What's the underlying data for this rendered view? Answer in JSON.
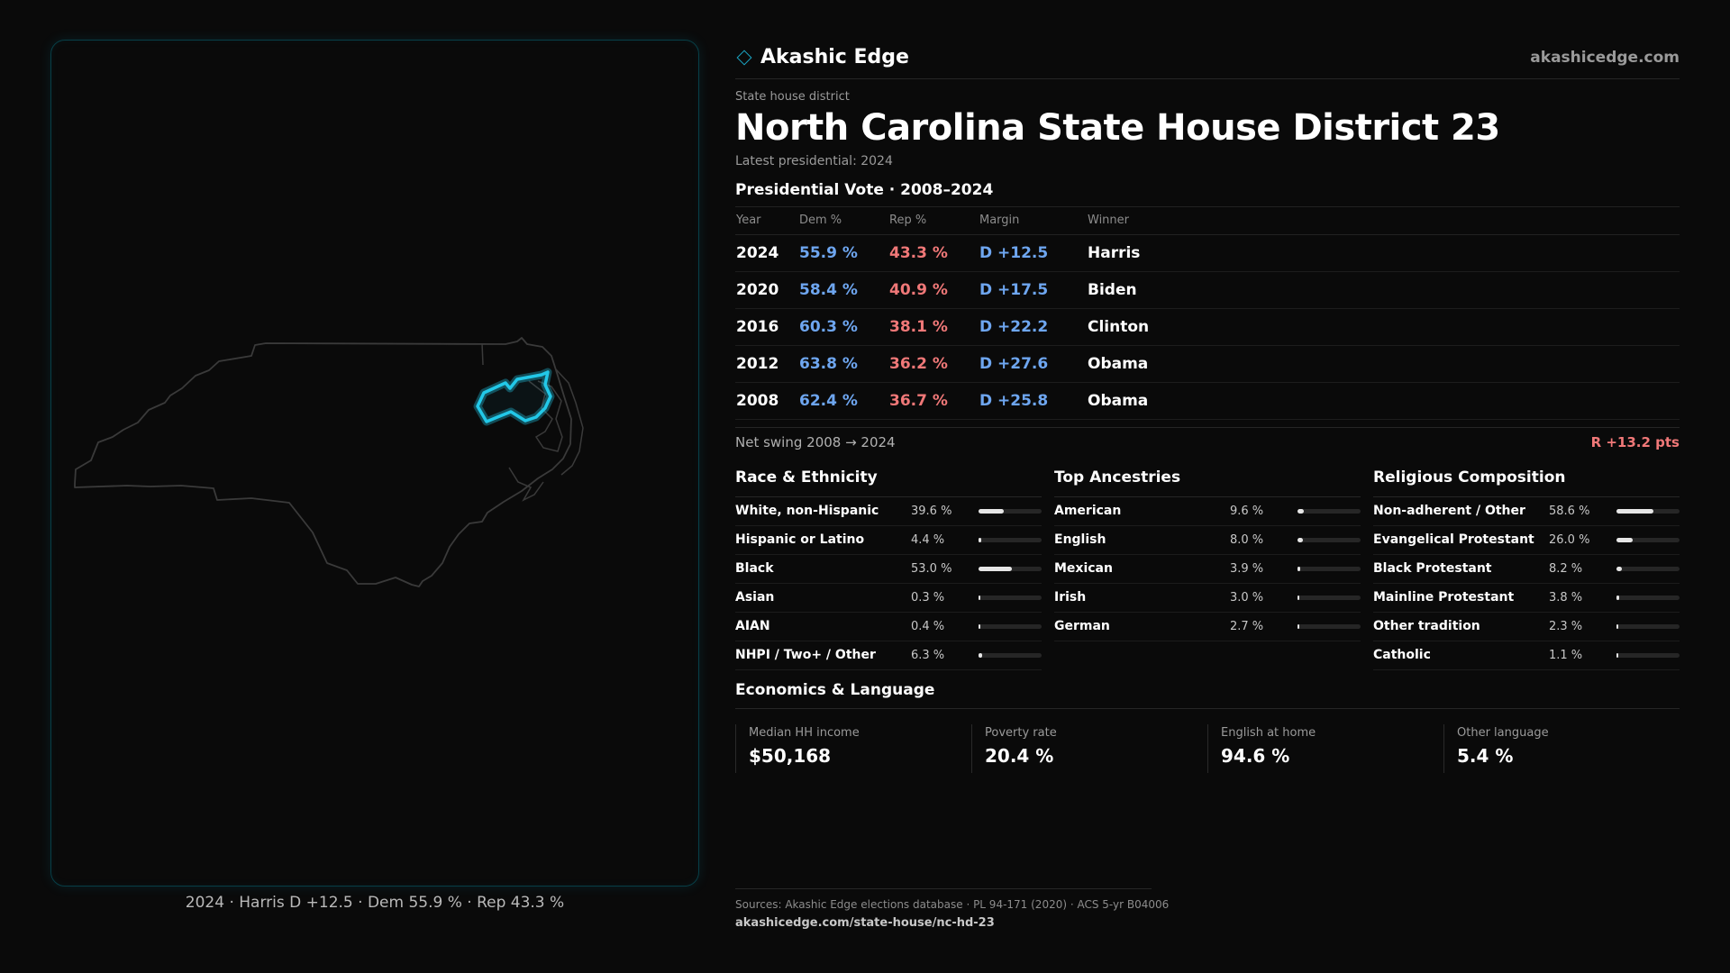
{
  "brand": {
    "name": "Akashic Edge",
    "url": "akashicedge.com",
    "accent": "#1aa7c6"
  },
  "district": {
    "label": "State house district",
    "title": "North Carolina State House District 23",
    "latest": "Latest presidential: 2024"
  },
  "map": {
    "caption": "2024 · Harris D +12.5 · Dem 55.9 % · Rep 43.3 %",
    "highlight_color": "#22c8e8"
  },
  "presidential": {
    "title": "Presidential Vote · 2008–2024",
    "headers": [
      "Year",
      "Dem %",
      "Rep %",
      "Margin",
      "Winner"
    ],
    "rows": [
      {
        "year": "2024",
        "dem": "55.9 %",
        "rep": "43.3 %",
        "margin": "D +12.5",
        "winner": "Harris"
      },
      {
        "year": "2020",
        "dem": "58.4 %",
        "rep": "40.9 %",
        "margin": "D +17.5",
        "winner": "Biden"
      },
      {
        "year": "2016",
        "dem": "60.3 %",
        "rep": "38.1 %",
        "margin": "D +22.2",
        "winner": "Clinton"
      },
      {
        "year": "2012",
        "dem": "63.8 %",
        "rep": "36.2 %",
        "margin": "D +27.6",
        "winner": "Obama"
      },
      {
        "year": "2008",
        "dem": "62.4 %",
        "rep": "36.7 %",
        "margin": "D +25.8",
        "winner": "Obama"
      }
    ],
    "colors": {
      "dem": "#6ea6f0",
      "rep": "#f07878"
    }
  },
  "swing": {
    "label": "Net swing 2008 → 2024",
    "value": "R +13.2 pts"
  },
  "race": {
    "title": "Race & Ethnicity",
    "rows": [
      {
        "label": "White, non-Hispanic",
        "value": "39.6 %",
        "pct": 39.6
      },
      {
        "label": "Hispanic or Latino",
        "value": "4.4 %",
        "pct": 4.4
      },
      {
        "label": "Black",
        "value": "53.0 %",
        "pct": 53.0
      },
      {
        "label": "Asian",
        "value": "0.3 %",
        "pct": 0.3
      },
      {
        "label": "AIAN",
        "value": "0.4 %",
        "pct": 0.4
      },
      {
        "label": "NHPI / Two+ / Other",
        "value": "6.3 %",
        "pct": 6.3
      }
    ]
  },
  "ancestry": {
    "title": "Top Ancestries",
    "rows": [
      {
        "label": "American",
        "value": "9.6 %",
        "pct": 9.6
      },
      {
        "label": "English",
        "value": "8.0 %",
        "pct": 8.0
      },
      {
        "label": "Mexican",
        "value": "3.9 %",
        "pct": 3.9
      },
      {
        "label": "Irish",
        "value": "3.0 %",
        "pct": 3.0
      },
      {
        "label": "German",
        "value": "2.7 %",
        "pct": 2.7
      }
    ]
  },
  "religion": {
    "title": "Religious Composition",
    "rows": [
      {
        "label": "Non-adherent / Other",
        "value": "58.6 %",
        "pct": 58.6
      },
      {
        "label": "Evangelical Protestant",
        "value": "26.0 %",
        "pct": 26.0
      },
      {
        "label": "Black Protestant",
        "value": "8.2 %",
        "pct": 8.2
      },
      {
        "label": "Mainline Protestant",
        "value": "3.8 %",
        "pct": 3.8
      },
      {
        "label": "Other tradition",
        "value": "2.3 %",
        "pct": 2.3
      },
      {
        "label": "Catholic",
        "value": "1.1 %",
        "pct": 1.1
      }
    ]
  },
  "economics": {
    "title": "Economics & Language",
    "cards": [
      {
        "label": "Median HH income",
        "value": "$50,168"
      },
      {
        "label": "Poverty rate",
        "value": "20.4 %"
      },
      {
        "label": "English at home",
        "value": "94.6 %"
      },
      {
        "label": "Other language",
        "value": "5.4 %"
      }
    ]
  },
  "footer": {
    "sources": "Sources: Akashic Edge elections database · PL 94-171 (2020) · ACS 5-yr B04006",
    "url": "akashicedge.com/state-house/nc-hd-23"
  }
}
